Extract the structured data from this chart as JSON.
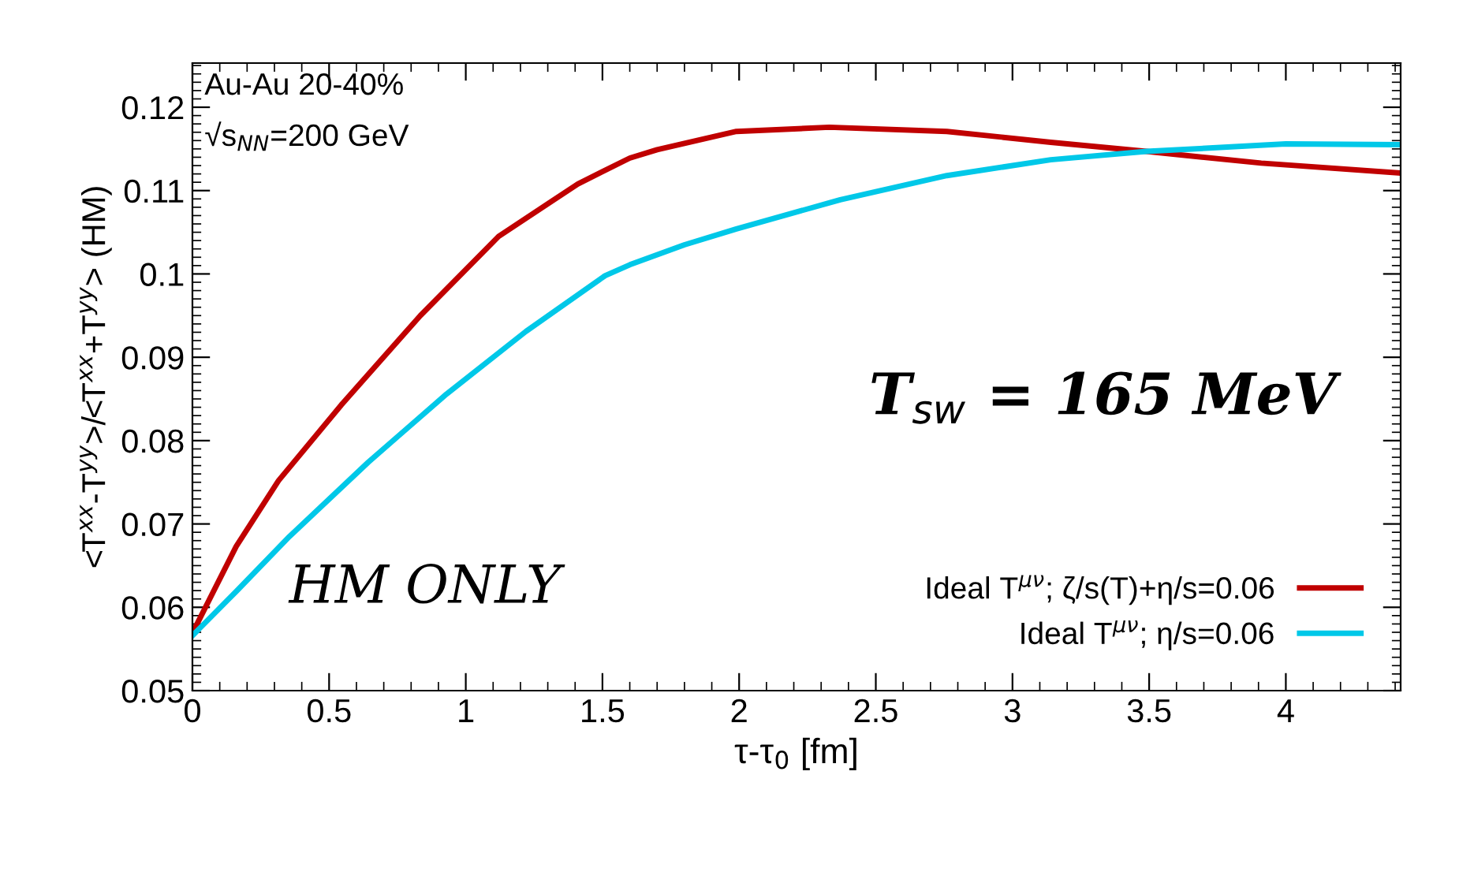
{
  "chart_data": {
    "type": "line",
    "xlabel": "τ-τ$_{0}$ [fm]",
    "ylabel": "<T$^{xx}$-T$^{yy}$>/<T$^{xx}$+T$^{yy}$> (HM)",
    "xlim": [
      0,
      4.42
    ],
    "ylim": [
      0.05,
      0.1253
    ],
    "xticks": [
      0,
      0.5,
      1,
      1.5,
      2,
      2.5,
      3,
      3.5,
      4
    ],
    "yticks": [
      0.05,
      0.06,
      0.07,
      0.08,
      0.09,
      0.1,
      0.11,
      0.12
    ],
    "grid": false,
    "legend": "bottom right",
    "line_style": "solid",
    "marker": "none",
    "annotations": [
      "Au-Au 20-40%",
      "√s$_{NN}$=200 GeV",
      "T$_{sw}$ = 165 MeV",
      "HM ONLY"
    ],
    "series": [
      {
        "name": "Ideal T$^{μν}$; ζ/s(T)+η/s=0.06",
        "color": "#c00000",
        "x": [
          0,
          0.16,
          0.315,
          0.545,
          0.834,
          1.12,
          1.41,
          1.6,
          1.7,
          1.99,
          2.33,
          2.76,
          3.14,
          3.49,
          3.91,
          4.42
        ],
        "values": [
          0.0569,
          0.0673,
          0.0752,
          0.0843,
          0.095,
          0.1045,
          0.1108,
          0.1139,
          0.1149,
          0.1171,
          0.1176,
          0.1171,
          0.1158,
          0.1147,
          0.1133,
          0.1121
        ]
      },
      {
        "name": "Ideal T$^{μν}$; η/s=0.06",
        "color": "#00c8e8",
        "x": [
          0,
          0.16,
          0.355,
          0.643,
          0.93,
          1.22,
          1.51,
          1.6,
          1.8,
          1.99,
          2.37,
          2.76,
          3.14,
          3.49,
          4.0,
          4.42
        ],
        "values": [
          0.0566,
          0.0619,
          0.0685,
          0.0774,
          0.0856,
          0.0931,
          0.0998,
          0.1011,
          0.1035,
          0.1054,
          0.1089,
          0.1118,
          0.1137,
          0.1147,
          0.1156,
          0.1155
        ]
      }
    ]
  }
}
